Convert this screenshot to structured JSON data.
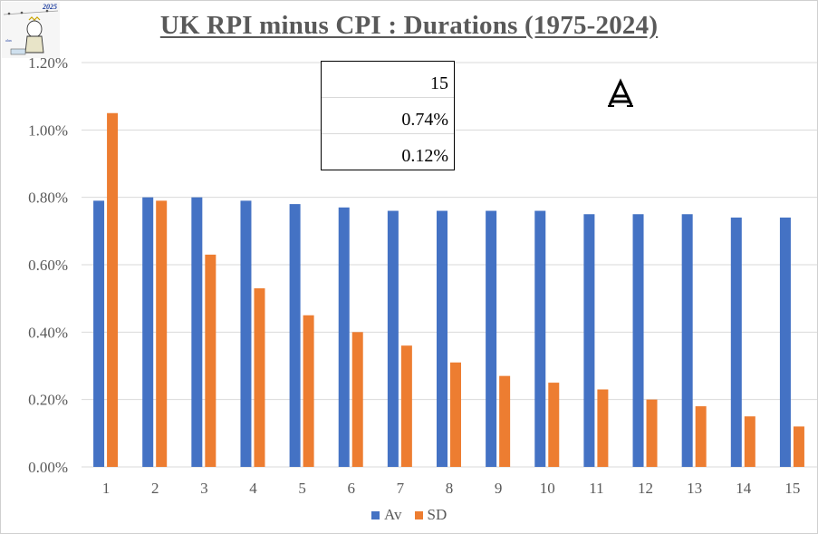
{
  "chart_data": {
    "type": "bar",
    "title": "UK RPI minus CPI : Durations (1975-2024)",
    "categories": [
      "1",
      "2",
      "3",
      "4",
      "5",
      "6",
      "7",
      "8",
      "9",
      "10",
      "11",
      "12",
      "13",
      "14",
      "15"
    ],
    "series": [
      {
        "name": "Av",
        "color": "#4472c4",
        "values": [
          0.79,
          0.8,
          0.8,
          0.79,
          0.78,
          0.77,
          0.76,
          0.76,
          0.76,
          0.76,
          0.75,
          0.75,
          0.75,
          0.74,
          0.74
        ]
      },
      {
        "name": "SD",
        "color": "#ed7d31",
        "values": [
          1.05,
          0.79,
          0.63,
          0.53,
          0.45,
          0.4,
          0.36,
          0.31,
          0.27,
          0.25,
          0.23,
          0.2,
          0.18,
          0.15,
          0.12
        ]
      }
    ],
    "ylim": [
      0,
      1.2
    ],
    "yticks": [
      "0.00%",
      "0.20%",
      "0.40%",
      "0.60%",
      "0.80%",
      "1.00%",
      "1.20%"
    ],
    "ytick_values": [
      0,
      0.2,
      0.4,
      0.6,
      0.8,
      1.0,
      1.2
    ],
    "grid": true,
    "legend_position": "bottom"
  },
  "infobox": {
    "duration": "15",
    "average": "0.74%",
    "sd": "0.12%"
  },
  "logo": {
    "year": "2025"
  },
  "legend": {
    "av": "Av",
    "sd": "SD"
  }
}
